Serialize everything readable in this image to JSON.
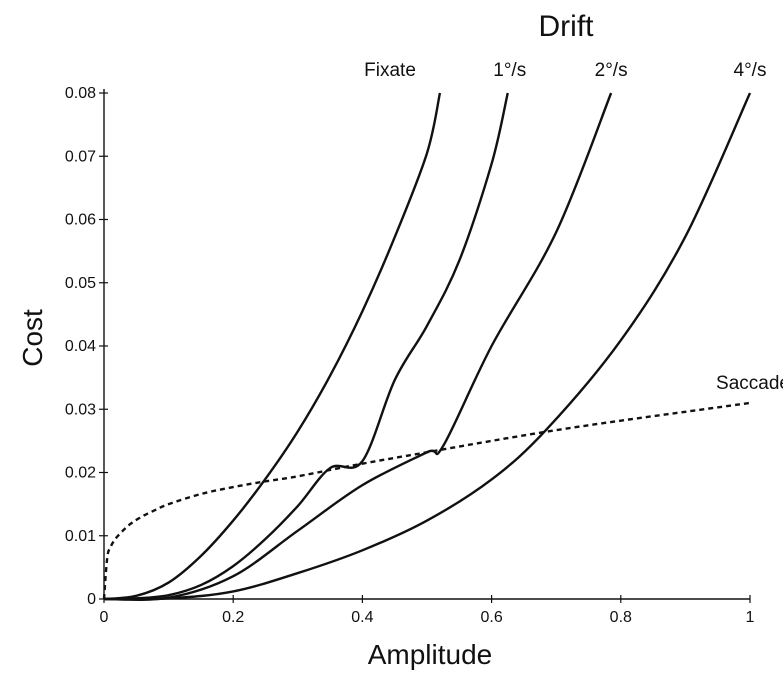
{
  "chart_data": {
    "type": "line",
    "title": "",
    "xlabel": "Amplitude",
    "ylabel": "Cost",
    "group_label": "Drift",
    "xlim": [
      0,
      1
    ],
    "ylim": [
      0,
      0.08
    ],
    "xticks": [
      0,
      0.2,
      0.4,
      0.6,
      0.8,
      1
    ],
    "xtick_labels": [
      "0",
      "0.2",
      "0.4",
      "0.6",
      "0.8",
      "1"
    ],
    "yticks": [
      0,
      0.01,
      0.02,
      0.03,
      0.04,
      0.05,
      0.06,
      0.07,
      0.08
    ],
    "ytick_labels": [
      "0",
      "0.01",
      "0.02",
      "0.03",
      "0.04",
      "0.05",
      "0.06",
      "0.07",
      "0.08"
    ],
    "grid": false,
    "series": [
      {
        "name": "Fixate",
        "style": "solid",
        "color": "#111111",
        "x": [
          0,
          0.05,
          0.1,
          0.15,
          0.2,
          0.25,
          0.3,
          0.35,
          0.4,
          0.45,
          0.5,
          0.52
        ],
        "y": [
          0,
          0.0005,
          0.0026,
          0.0068,
          0.0124,
          0.019,
          0.0265,
          0.0353,
          0.0455,
          0.0572,
          0.0705,
          0.08
        ]
      },
      {
        "name": "1°/s",
        "style": "solid",
        "color": "#111111",
        "x": [
          0,
          0.05,
          0.1,
          0.15,
          0.2,
          0.25,
          0.3,
          0.35,
          0.4,
          0.45,
          0.5,
          0.55,
          0.6,
          0.625
        ],
        "y": [
          0,
          0.0001,
          0.0006,
          0.0022,
          0.0052,
          0.0095,
          0.0147,
          0.0207,
          0.0218,
          0.0346,
          0.0432,
          0.0535,
          0.0688,
          0.08
        ]
      },
      {
        "name": "2°/s",
        "style": "solid",
        "color": "#111111",
        "x": [
          0,
          0.1,
          0.2,
          0.3,
          0.4,
          0.5,
          0.525,
          0.6,
          0.7,
          0.785
        ],
        "y": [
          0,
          0.0002,
          0.0036,
          0.0108,
          0.018,
          0.0232,
          0.0242,
          0.04,
          0.058,
          0.08
        ]
      },
      {
        "name": "4°/s",
        "style": "solid",
        "color": "#111111",
        "x": [
          0,
          0.1,
          0.2,
          0.3,
          0.4,
          0.5,
          0.6,
          0.685,
          0.8,
          0.9,
          1.0
        ],
        "y": [
          0,
          0.0001,
          0.0012,
          0.0041,
          0.0077,
          0.0124,
          0.0189,
          0.0268,
          0.0409,
          0.0573,
          0.08
        ]
      },
      {
        "name": "Saccade",
        "style": "dashed",
        "color": "#111111",
        "x": [
          0,
          0.005,
          0.01,
          0.02,
          0.04,
          0.06,
          0.08,
          0.1,
          0.15,
          0.2,
          0.25,
          0.3,
          0.4,
          0.5,
          0.6,
          0.7,
          0.8,
          0.9,
          1.0
        ],
        "y": [
          0,
          0.0065,
          0.0082,
          0.0098,
          0.0118,
          0.0131,
          0.0141,
          0.015,
          0.0166,
          0.0177,
          0.0186,
          0.0194,
          0.0214,
          0.0232,
          0.025,
          0.0267,
          0.0282,
          0.0296,
          0.031
        ]
      }
    ]
  }
}
